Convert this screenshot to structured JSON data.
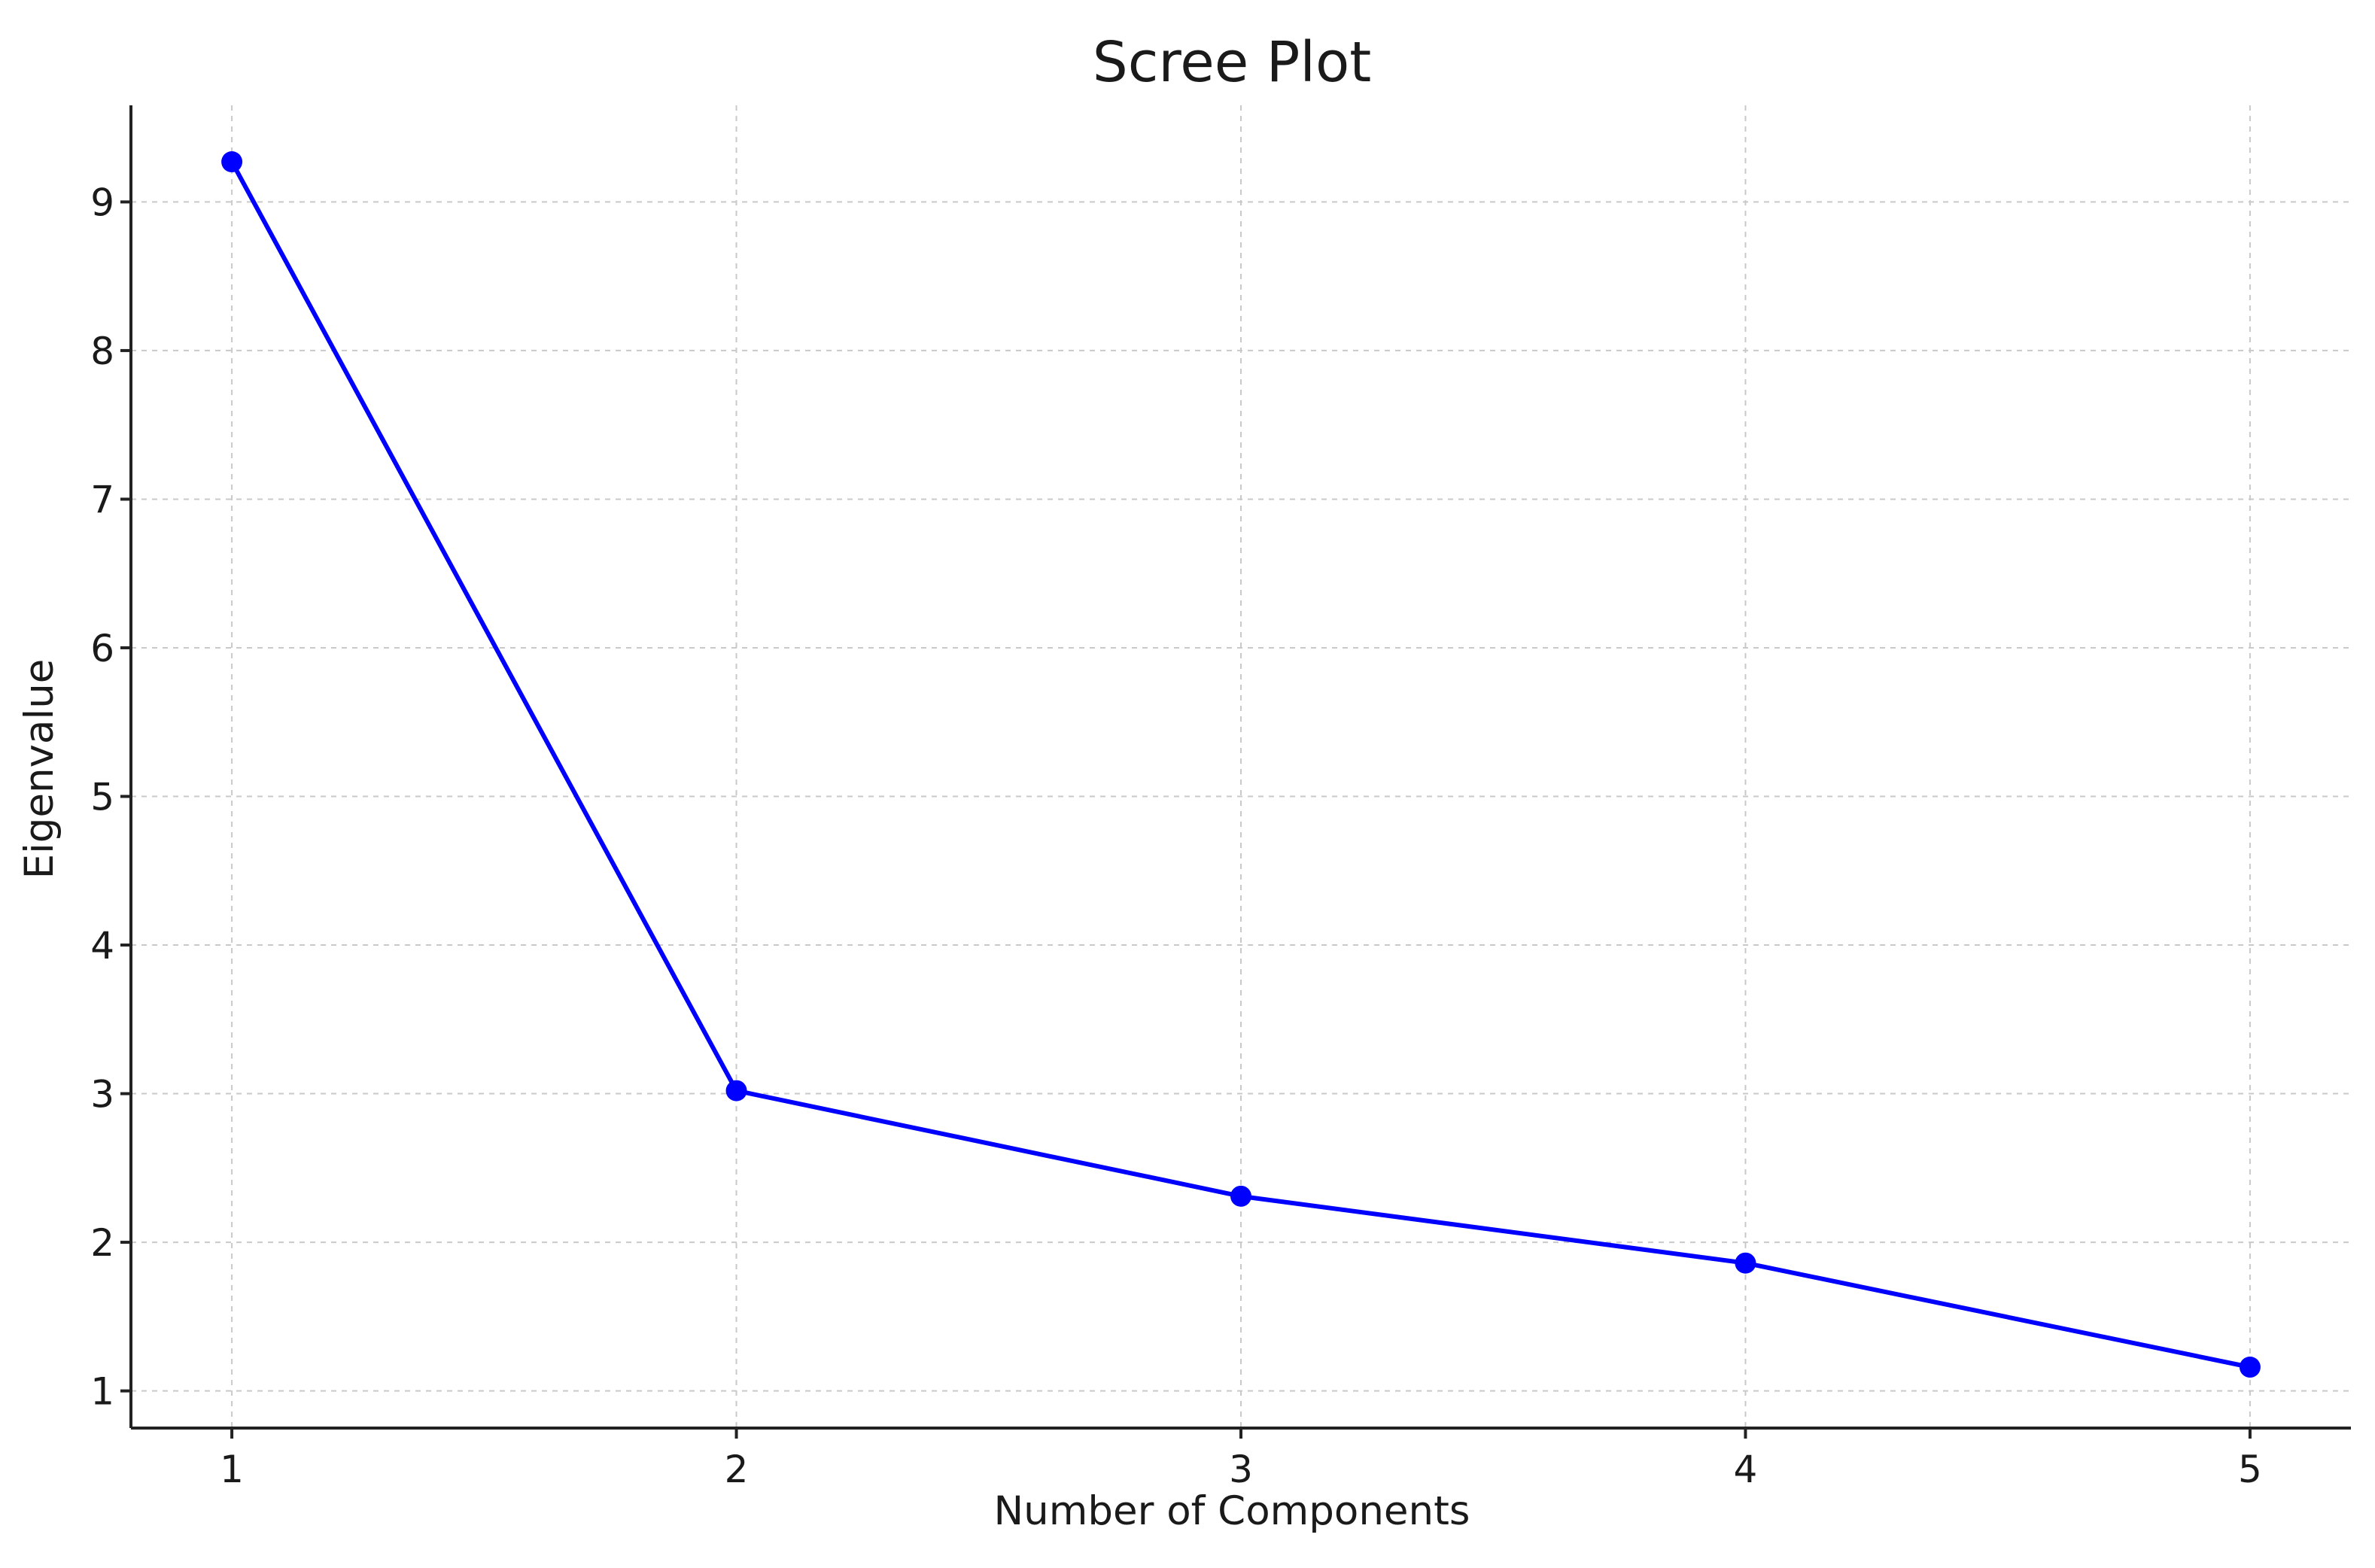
{
  "chart_data": {
    "type": "line",
    "title": "Scree Plot",
    "xlabel": "Number of Components",
    "ylabel": "Eigenvalue",
    "x": [
      1,
      2,
      3,
      4,
      5
    ],
    "series": [
      {
        "values": [
          9.27,
          3.02,
          2.31,
          1.86,
          1.16
        ],
        "color": "#0000ff",
        "marker": "circle"
      }
    ],
    "xticks": [
      "1",
      "2",
      "3",
      "4",
      "5"
    ],
    "yticks": [
      "1",
      "2",
      "3",
      "4",
      "5",
      "6",
      "7",
      "8",
      "9"
    ],
    "xlim": [
      0.8,
      5.2
    ],
    "ylim": [
      0.75,
      9.65
    ],
    "grid": true,
    "legend": "none"
  }
}
